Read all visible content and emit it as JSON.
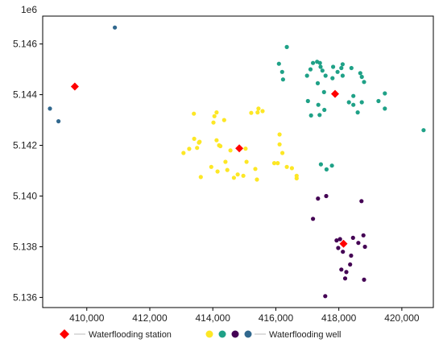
{
  "chart_data": {
    "type": "scatter",
    "title": "",
    "xlabel": "",
    "ylabel": "",
    "y_offset_label": "1e6",
    "xlim": [
      408600,
      421000
    ],
    "ylim": [
      5.1356,
      5.1471
    ],
    "x_ticks": [
      {
        "value": 410000,
        "label": "410,000"
      },
      {
        "value": 412000,
        "label": "412,000"
      },
      {
        "value": 414000,
        "label": "414,000"
      },
      {
        "value": 416000,
        "label": "416,000"
      },
      {
        "value": 418000,
        "label": "418,000"
      },
      {
        "value": 420000,
        "label": "420,000"
      }
    ],
    "y_ticks": [
      {
        "value": 5.136,
        "label": "5.136"
      },
      {
        "value": 5.138,
        "label": "5.138"
      },
      {
        "value": 5.14,
        "label": "5.140"
      },
      {
        "value": 5.142,
        "label": "5.142"
      },
      {
        "value": 5.144,
        "label": "5.144"
      },
      {
        "value": 5.146,
        "label": "5.146"
      }
    ],
    "grid": false,
    "legend_position": "bottom",
    "series": [
      {
        "name": "Waterflooding station",
        "marker": "diamond",
        "color": "#ff0000",
        "points": [
          [
            409620,
            5.14432
          ],
          [
            414840,
            5.14188
          ],
          [
            417880,
            5.14403
          ],
          [
            418150,
            5.13812
          ]
        ]
      },
      {
        "group": "well-yellow",
        "marker": "circle",
        "color": "#fde725",
        "points": [
          [
            413070,
            5.1417
          ],
          [
            413250,
            5.14186
          ],
          [
            413400,
            5.14325
          ],
          [
            413410,
            5.14226
          ],
          [
            413560,
            5.14211
          ],
          [
            413580,
            5.14214
          ],
          [
            413500,
            5.1419
          ],
          [
            413620,
            5.14075
          ],
          [
            413950,
            5.14115
          ],
          [
            414050,
            5.14315
          ],
          [
            414120,
            5.1433
          ],
          [
            414020,
            5.1429
          ],
          [
            414120,
            5.1422
          ],
          [
            414200,
            5.142
          ],
          [
            414360,
            5.143
          ],
          [
            414240,
            5.14197
          ],
          [
            414150,
            5.14097
          ],
          [
            414400,
            5.14135
          ],
          [
            414460,
            5.14103
          ],
          [
            414560,
            5.1418
          ],
          [
            414670,
            5.14072
          ],
          [
            414790,
            5.14085
          ],
          [
            414970,
            5.1408
          ],
          [
            415040,
            5.14187
          ],
          [
            415070,
            5.14135
          ],
          [
            415220,
            5.14328
          ],
          [
            415420,
            5.1433
          ],
          [
            415450,
            5.14345
          ],
          [
            415580,
            5.14335
          ],
          [
            415350,
            5.14107
          ],
          [
            415400,
            5.14065
          ],
          [
            415950,
            5.1413
          ],
          [
            416060,
            5.1413
          ],
          [
            416120,
            5.14243
          ],
          [
            416120,
            5.14204
          ],
          [
            416210,
            5.1417
          ],
          [
            416350,
            5.14115
          ],
          [
            416510,
            5.1411
          ],
          [
            416660,
            5.1407
          ],
          [
            416660,
            5.1408
          ]
        ]
      },
      {
        "group": "well-green",
        "marker": "circle",
        "color": "#1fa187",
        "points": [
          [
            416350,
            5.14588
          ],
          [
            416100,
            5.14522
          ],
          [
            416200,
            5.1449
          ],
          [
            416230,
            5.1446
          ],
          [
            416990,
            5.14475
          ],
          [
            417100,
            5.145
          ],
          [
            417180,
            5.14525
          ],
          [
            417310,
            5.1453
          ],
          [
            417400,
            5.14525
          ],
          [
            417420,
            5.1451
          ],
          [
            417480,
            5.14495
          ],
          [
            417580,
            5.14475
          ],
          [
            417820,
            5.1451
          ],
          [
            417960,
            5.1449
          ],
          [
            418080,
            5.14505
          ],
          [
            418120,
            5.1452
          ],
          [
            418120,
            5.14475
          ],
          [
            418400,
            5.14505
          ],
          [
            418680,
            5.14485
          ],
          [
            418730,
            5.1447
          ],
          [
            418800,
            5.1445
          ],
          [
            417800,
            5.14465
          ],
          [
            417330,
            5.14445
          ],
          [
            417530,
            5.1441
          ],
          [
            417020,
            5.14375
          ],
          [
            417350,
            5.1436
          ],
          [
            417390,
            5.1432
          ],
          [
            417540,
            5.1434
          ],
          [
            417120,
            5.14318
          ],
          [
            418320,
            5.1437
          ],
          [
            418460,
            5.14395
          ],
          [
            418460,
            5.1436
          ],
          [
            418730,
            5.1437
          ],
          [
            418600,
            5.1433
          ],
          [
            419260,
            5.14375
          ],
          [
            419460,
            5.14405
          ],
          [
            419460,
            5.14345
          ],
          [
            417430,
            5.14125
          ],
          [
            417610,
            5.14105
          ],
          [
            417780,
            5.1412
          ],
          [
            420690,
            5.1426
          ]
        ]
      },
      {
        "group": "well-purple",
        "marker": "circle",
        "color": "#440154",
        "points": [
          [
            417600,
            5.14
          ],
          [
            417340,
            5.1399
          ],
          [
            417180,
            5.1391
          ],
          [
            418720,
            5.1398
          ],
          [
            417930,
            5.13825
          ],
          [
            418040,
            5.1383
          ],
          [
            418130,
            5.1378
          ],
          [
            417980,
            5.13795
          ],
          [
            418450,
            5.13835
          ],
          [
            418620,
            5.13815
          ],
          [
            418780,
            5.13845
          ],
          [
            418830,
            5.138
          ],
          [
            418390,
            5.13765
          ],
          [
            418360,
            5.1373
          ],
          [
            418240,
            5.137
          ],
          [
            418080,
            5.1371
          ],
          [
            418200,
            5.13675
          ],
          [
            418800,
            5.1367
          ],
          [
            417570,
            5.13605
          ]
        ]
      },
      {
        "group": "well-teal",
        "marker": "circle",
        "color": "#31688e",
        "points": [
          [
            408830,
            5.14345
          ],
          [
            409100,
            5.14295
          ],
          [
            410890,
            5.14665
          ]
        ]
      }
    ],
    "legend": [
      {
        "kind": "diamond",
        "colors": [
          "#ff0000"
        ],
        "label": "Waterflooding station"
      },
      {
        "kind": "dots",
        "colors": [
          "#fde725",
          "#1fa187",
          "#440154",
          "#31688e"
        ],
        "label": "Waterflooding well"
      }
    ]
  }
}
